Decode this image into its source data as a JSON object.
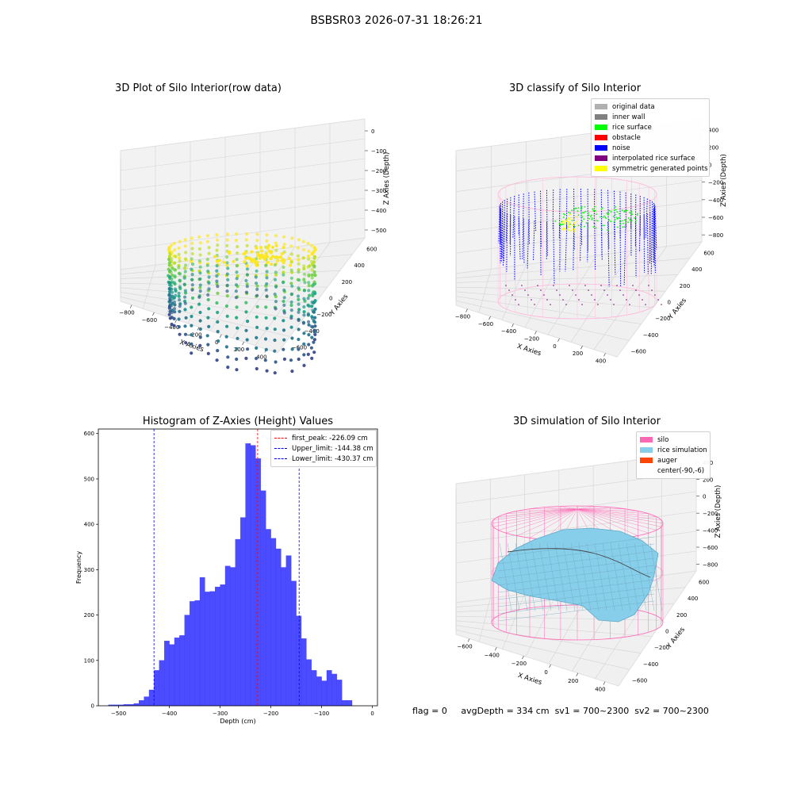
{
  "figure": {
    "suptitle": "BSBSR03 2026-07-31 18:26:21",
    "status": {
      "flag": "flag = 0",
      "avg_depth": "avgDepth = 334 cm",
      "sv1": "sv1 = 700~2300",
      "sv2": "sv2 = 700~2300"
    }
  },
  "colors": {
    "silo": "#ff69b4",
    "rice_simulation": "#87ceeb",
    "auger": "#ff4500",
    "original_data": "#b0b0b0",
    "inner_wall": "#808080",
    "rice_surface": "#00ff00",
    "obstacle": "#ff0000",
    "noise": "#0000ff",
    "interpolated": "#800080",
    "symmetric": "#ffff00",
    "hist_bar": "#4b4bff"
  },
  "chart_data": [
    {
      "type": "scatter",
      "title": "3D Plot of Silo Interior(row data)",
      "xlabel": "X Axies",
      "ylabel": "Y Axies",
      "zlabel": "Z Axies (Depth)",
      "x_ticks": [
        "−800",
        "−600",
        "−400",
        "−200",
        "0",
        "200",
        "400"
      ],
      "y_ticks": [
        "600",
        "400",
        "200",
        "0",
        "−200",
        "−400",
        "−600"
      ],
      "z_ticks": [
        "0",
        "−100",
        "−200",
        "−300",
        "−400",
        "−500"
      ]
    },
    {
      "type": "scatter",
      "title": "3D classify of Silo Interior",
      "xlabel": "X Axies",
      "ylabel": "Y Axies",
      "zlabel": "Z Axies (Depth)",
      "x_ticks": [
        "−800",
        "−600",
        "−400",
        "−200",
        "0",
        "200",
        "400"
      ],
      "y_ticks": [
        "600",
        "400",
        "200",
        "0",
        "−200",
        "−400",
        "−600"
      ],
      "z_ticks": [
        "400",
        "200",
        "0",
        "−200",
        "−400",
        "−600",
        "−800"
      ],
      "legend": [
        {
          "label": "original data",
          "color": "#b0b0b0"
        },
        {
          "label": "inner wall",
          "color": "#808080"
        },
        {
          "label": "rice surface",
          "color": "#00ff00"
        },
        {
          "label": "obstacle",
          "color": "#ff0000"
        },
        {
          "label": "noise",
          "color": "#0000ff"
        },
        {
          "label": "interpolated rice surface",
          "color": "#800080"
        },
        {
          "label": "symmetric generated points",
          "color": "#ffff00"
        }
      ]
    },
    {
      "type": "bar",
      "title": "Histogram of Z-Axies (Height) Values",
      "xlabel": "Depth (cm)",
      "ylabel": "Frequency",
      "xlim": [
        -540,
        10
      ],
      "ylim": [
        0,
        610
      ],
      "x_ticks": [
        -500,
        -400,
        -300,
        -200,
        -100,
        0
      ],
      "x_tick_labels": [
        "−500",
        "−400",
        "−300",
        "−200",
        "−100",
        "0"
      ],
      "y_ticks": [
        0,
        100,
        200,
        300,
        400,
        500,
        600
      ],
      "bin_start": -520,
      "bin_width": 10,
      "values": [
        2,
        2,
        2,
        3,
        3,
        5,
        12,
        20,
        35,
        78,
        100,
        143,
        135,
        150,
        155,
        200,
        230,
        232,
        283,
        251,
        252,
        262,
        267,
        308,
        305,
        367,
        415,
        578,
        574,
        545,
        474,
        389,
        369,
        346,
        305,
        331,
        275,
        198,
        148,
        102,
        78,
        64,
        55,
        78,
        70,
        57,
        12,
        12
      ],
      "vlines": [
        {
          "x": -226.09,
          "color": "#ff0000"
        },
        {
          "x": -144.38,
          "color": "#0000ff"
        },
        {
          "x": -430.37,
          "color": "#0000ff"
        }
      ],
      "legend": [
        {
          "label": "first_peak: -226.09 cm",
          "color": "#ff0000"
        },
        {
          "label": "Upper_limit: -144.38 cm",
          "color": "#0000ff"
        },
        {
          "label": "Lower_limit: -430.37 cm",
          "color": "#0000ff"
        }
      ]
    },
    {
      "type": "area",
      "title": "3D simulation of Silo Interior",
      "xlabel": "X Axies",
      "ylabel": "Y Axies",
      "zlabel": "Z Axies (Depth)",
      "x_ticks": [
        "−600",
        "−400",
        "−200",
        "0",
        "200",
        "400"
      ],
      "y_ticks": [
        "600",
        "400",
        "200",
        "0",
        "−200",
        "−400",
        "−600"
      ],
      "z_ticks": [
        "400",
        "200",
        "0",
        "−200",
        "−400",
        "−600",
        "−800"
      ],
      "legend": [
        {
          "label": "silo",
          "color": "#ff69b4"
        },
        {
          "label": "rice simulation",
          "color": "#87ceeb"
        },
        {
          "label": "auger",
          "color": "#ff4500"
        },
        {
          "label": "center(-90,-6)",
          "color": ""
        }
      ]
    }
  ]
}
